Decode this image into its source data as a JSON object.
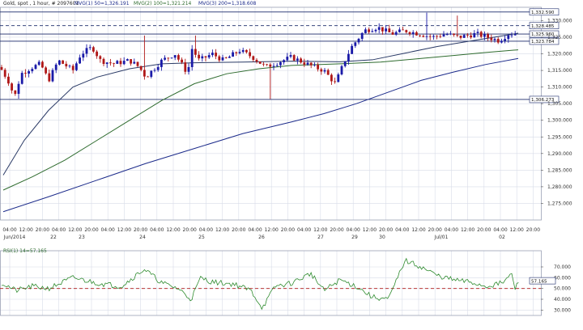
{
  "header": {
    "symbol": "Gold, spot , 1 hour, # 2097601",
    "mvg1": "MVG(1) 50=1,326.191",
    "mvg2": "MVG(2) 100=1,321.214",
    "mvg3": "MVG(3) 200=1,318.608"
  },
  "rsi_label": "RSI(1) 14=57.165",
  "colors": {
    "background": "#ffffff",
    "grid": "#d8dce8",
    "candle_up": "#1a1aa8",
    "candle_down": "#b01818",
    "mvg1": "#2a3a66",
    "mvg2": "#2e6b2e",
    "mvg3": "#1b2a8a",
    "rsi_line": "#2e8b2e",
    "rsi_ref": "#b01818"
  },
  "chart_data": [
    {
      "type": "candlestick",
      "title": "Gold, spot , 1 hour, # 2097601",
      "ylim": [
        1270,
        1334
      ],
      "y_ticks": [
        "1,330.000",
        "1,325.000",
        "1,320.000",
        "1,315.000",
        "1,310.000",
        "1,305.000",
        "1,300.000",
        "1,295.000",
        "1,290.000",
        "1,285.000",
        "1,280.000",
        "1,275.000"
      ],
      "y_tick_values": [
        1330,
        1325,
        1320,
        1315,
        1310,
        1305,
        1300,
        1295,
        1290,
        1285,
        1280,
        1275
      ],
      "x_time_labels": [
        "04:00",
        "12:00",
        "20:00",
        "04:00",
        "12:00",
        "20:00",
        "04:00",
        "12:00",
        "20:00",
        "04:00",
        "12:00",
        "20:00",
        "04:00",
        "12:00",
        "20:00",
        "04:00",
        "12:00",
        "20:00",
        "04:00",
        "12:00",
        "20:00",
        "04:00",
        "12:00",
        "20:00",
        "04:00",
        "12:00",
        "20:00",
        "04:00",
        "12:00",
        "20:00",
        "04:00",
        "12:00",
        "20:00"
      ],
      "x_date_labels": [
        "Jun/2014",
        "22",
        "23",
        "24",
        "25",
        "26",
        "27",
        "29",
        "30",
        "Jul/01",
        "02"
      ],
      "horizontal_levels": [
        {
          "value": 1332.59,
          "label": "1,332.590",
          "style": "solid"
        },
        {
          "value": 1328.485,
          "label": "1,328.485",
          "style": "dashed"
        },
        {
          "value": 1325.96,
          "label": "1,325.960",
          "style": "solid"
        },
        {
          "value": 1323.784,
          "label": "1,323.784",
          "style": "solid"
        },
        {
          "value": 1306.273,
          "label": "1,306.273",
          "style": "solid"
        }
      ],
      "series": [
        {
          "name": "MVG(1) 50",
          "last": 1326.191
        },
        {
          "name": "MVG(2) 100",
          "last": 1321.214
        },
        {
          "name": "MVG(3) 200",
          "last": 1318.608
        }
      ]
    },
    {
      "type": "line",
      "title": "RSI(1) 14=57.165",
      "ylim": [
        25,
        85
      ],
      "y_ticks": [
        "70.000",
        "60.000",
        "50.000",
        "40.000",
        "30.000"
      ],
      "y_tick_values": [
        70,
        60,
        50,
        40,
        30
      ],
      "reference_level": 50,
      "last_value": 57.165,
      "last_label": "57.165"
    }
  ]
}
